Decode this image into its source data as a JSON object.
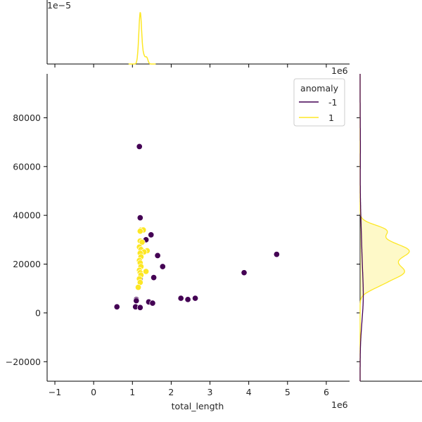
{
  "chart_data": {
    "type": "scatter",
    "xlabel": "total_length",
    "ylabel": "",
    "x_offset_text": "1e6",
    "y_offset_text": "",
    "top_marginal_offset_text": "1e−5",
    "xlim": [
      -1.2,
      6.6
    ],
    "ylim": [
      -28000,
      98000
    ],
    "x_ticks": [
      -1,
      0,
      1,
      2,
      3,
      4,
      5,
      6
    ],
    "y_ticks": [
      -20000,
      0,
      20000,
      40000,
      60000,
      80000
    ],
    "grid": false,
    "legend": {
      "title": "anomaly",
      "placement": "upper-right",
      "entries": [
        {
          "label": "-1",
          "color": "#440154"
        },
        {
          "label": "1",
          "color": "#fde725"
        }
      ]
    },
    "colors": {
      "-1": "#440154",
      "1": "#fde725"
    },
    "series": [
      {
        "name": "-1",
        "color": "#440154",
        "points": [
          [
            1.18,
            68200
          ],
          [
            1.2,
            39000
          ],
          [
            1.35,
            30000
          ],
          [
            1.48,
            32000
          ],
          [
            1.65,
            23500
          ],
          [
            1.78,
            19000
          ],
          [
            1.55,
            14500
          ],
          [
            1.2,
            14000
          ],
          [
            3.88,
            16500
          ],
          [
            4.72,
            24000
          ],
          [
            2.25,
            6000
          ],
          [
            2.43,
            5500
          ],
          [
            2.62,
            6000
          ],
          [
            1.1,
            5500
          ],
          [
            1.1,
            5000
          ],
          [
            1.42,
            4500
          ],
          [
            1.52,
            4000
          ],
          [
            0.6,
            2500
          ],
          [
            1.08,
            2500
          ],
          [
            1.2,
            2200
          ]
        ]
      },
      {
        "name": "1",
        "color": "#fde725",
        "points": [
          [
            1.22,
            34000
          ],
          [
            1.28,
            34000
          ],
          [
            1.2,
            29500
          ],
          [
            1.25,
            29000
          ],
          [
            1.18,
            27000
          ],
          [
            1.22,
            26000
          ],
          [
            1.38,
            25500
          ],
          [
            1.3,
            25000
          ],
          [
            1.2,
            24500
          ],
          [
            1.22,
            23000
          ],
          [
            1.18,
            21500
          ],
          [
            1.2,
            20500
          ],
          [
            1.22,
            19000
          ],
          [
            1.18,
            17500
          ],
          [
            1.35,
            17000
          ],
          [
            1.2,
            16500
          ],
          [
            1.22,
            15500
          ],
          [
            1.18,
            14000
          ],
          [
            1.2,
            12500
          ],
          [
            1.15,
            10500
          ],
          [
            1.2,
            33500
          ]
        ]
      }
    ]
  }
}
